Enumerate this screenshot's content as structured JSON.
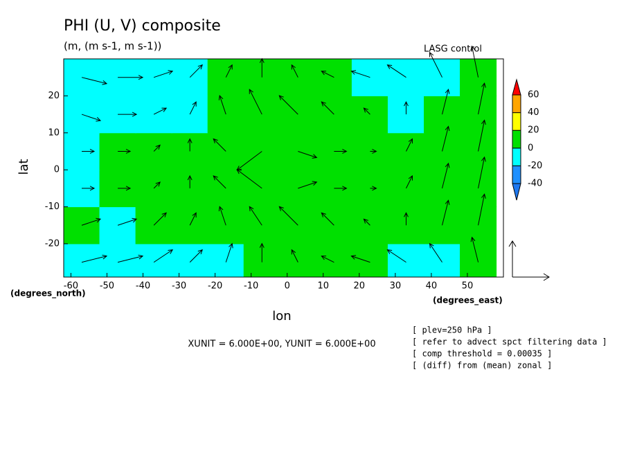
{
  "chart_data": {
    "type": "contour_vector",
    "title": "PHI (U, V) composite",
    "subtitle": "(m, (m s-1, m s-1))",
    "annotation": "LASG  control",
    "x_label": "lon",
    "y_label": "lat",
    "x_units": "(degrees_east)",
    "y_units": "(degrees_north)",
    "xlim": [
      -62,
      60
    ],
    "ylim": [
      -29,
      30
    ],
    "xticks": [
      -60,
      -50,
      -40,
      -30,
      -20,
      -10,
      0,
      10,
      20,
      30,
      40,
      50
    ],
    "yticks": [
      -20,
      -10,
      0,
      10,
      20
    ],
    "x": [
      -57,
      -47,
      -37,
      -27,
      -17,
      -7,
      3,
      13,
      23,
      33,
      43,
      53
    ],
    "y": [
      -25,
      -15,
      -5,
      5,
      15,
      25
    ],
    "field": [
      [
        -5,
        -5,
        -5,
        -5,
        -5,
        5,
        5,
        5,
        5,
        -5,
        -5,
        5
      ],
      [
        5,
        -5,
        5,
        5,
        5,
        5,
        5,
        5,
        5,
        5,
        5,
        5
      ],
      [
        -5,
        5,
        5,
        5,
        5,
        5,
        5,
        5,
        5,
        5,
        5,
        5
      ],
      [
        -5,
        5,
        5,
        5,
        5,
        5,
        5,
        5,
        5,
        5,
        5,
        5
      ],
      [
        -5,
        -5,
        -5,
        -5,
        5,
        5,
        5,
        5,
        5,
        -5,
        5,
        5
      ],
      [
        -5,
        -5,
        -5,
        -5,
        5,
        5,
        5,
        5,
        -5,
        -5,
        -5,
        5
      ]
    ],
    "u": [
      [
        4,
        4,
        3,
        2,
        1,
        0,
        -1,
        -2,
        -3,
        -3,
        -2,
        -1
      ],
      [
        3,
        3,
        2,
        1,
        -1,
        -2,
        -3,
        -2,
        -1,
        0,
        1,
        1
      ],
      [
        2,
        2,
        1,
        0,
        -2,
        -4,
        3,
        2,
        1,
        1,
        1,
        1
      ],
      [
        2,
        2,
        1,
        0,
        -2,
        -4,
        3,
        2,
        1,
        1,
        1,
        1
      ],
      [
        3,
        3,
        2,
        1,
        -1,
        -2,
        -3,
        -2,
        -1,
        0,
        1,
        1
      ],
      [
        4,
        4,
        3,
        2,
        1,
        0,
        -1,
        -2,
        -3,
        -3,
        -2,
        -1
      ]
    ],
    "v": [
      [
        1,
        1,
        2,
        2,
        3,
        3,
        2,
        1,
        1,
        2,
        3,
        4
      ],
      [
        1,
        1,
        2,
        2,
        3,
        3,
        3,
        2,
        1,
        2,
        4,
        5
      ],
      [
        0,
        0,
        1,
        2,
        2,
        3,
        1,
        0,
        0,
        2,
        4,
        5
      ],
      [
        0,
        0,
        1,
        2,
        2,
        -3,
        -1,
        0,
        0,
        2,
        4,
        5
      ],
      [
        -1,
        0,
        1,
        2,
        3,
        4,
        3,
        2,
        1,
        2,
        4,
        5
      ],
      [
        -1,
        0,
        1,
        2,
        2,
        3,
        2,
        1,
        1,
        2,
        4,
        5
      ]
    ],
    "colorbar": {
      "levels": [
        -40,
        -20,
        0,
        20,
        40,
        60
      ],
      "colors": [
        "#1e78f0",
        "#1e90ff",
        "#00ffff",
        "#00e000",
        "#ffff00",
        "#ffa500",
        "#ff0000"
      ]
    },
    "vector_unit_text": "XUNIT = 6.000E+00, YUNIT = 6.000E+00",
    "notes": [
      "[ plev=250 hPa ]",
      "[ refer to advect spct filtering data ]",
      "[ comp threshold = 0.00035 ]",
      "[ (diff) from (mean) zonal ]"
    ]
  }
}
